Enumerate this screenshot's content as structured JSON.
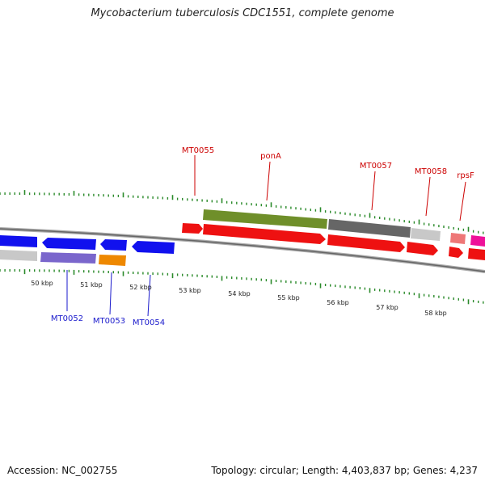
{
  "title": "Mycobacterium tuberculosis CDC1551, complete genome",
  "footer": {
    "accession": "Accession: NC_002755",
    "summary": "Topology: circular; Length: 4,403,837 bp; Genes: 4,237"
  },
  "colors": {
    "tick": "#2a8a2a",
    "backbone": "#888888",
    "label_top": "#cc0000",
    "label_bottom": "#1a1acc",
    "red": "#ee1111",
    "blue": "#1111ee",
    "olive": "#6f8f2a",
    "dark_gray": "#666666",
    "light_gray": "#c8c8c8",
    "purple": "#7a66cc",
    "orange": "#ee8800",
    "pink": "#ee7777",
    "magenta": "#ee1199"
  },
  "scale_labels": [
    "50 kbp",
    "51 kbp",
    "52 kbp",
    "53 kbp",
    "54 kbp",
    "55 kbp",
    "56 kbp",
    "57 kbp",
    "58 kbp"
  ],
  "gene_labels_top": [
    "MT0055",
    "ponA",
    "MT0057",
    "MT0058",
    "rpsF"
  ],
  "gene_labels_bottom": [
    "MT0052",
    "MT0053",
    "MT0054"
  ]
}
